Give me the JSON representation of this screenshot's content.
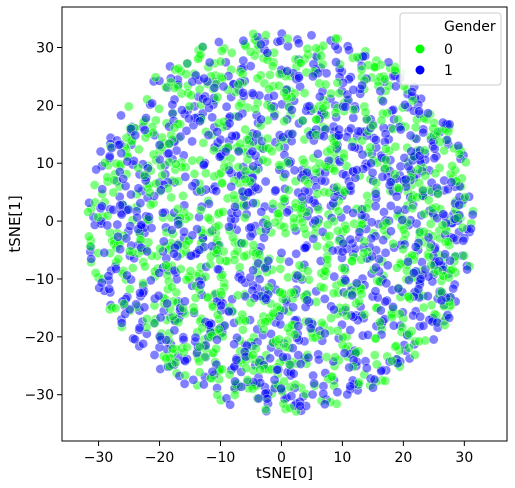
{
  "chart_data": {
    "type": "scatter",
    "title": "",
    "xlabel": "tSNE[0]",
    "ylabel": "tSNE[1]",
    "xlim": [
      -36,
      37
    ],
    "ylim": [
      -38,
      37
    ],
    "xticks": [
      -30,
      -20,
      -10,
      0,
      10,
      20,
      30
    ],
    "yticks": [
      -30,
      -20,
      -10,
      0,
      10,
      20,
      30
    ],
    "grid": false,
    "legend": {
      "title": "Gender",
      "placement": "top-right",
      "entries": [
        "0",
        "1"
      ]
    },
    "series": [
      {
        "name": "0",
        "color": "#00ff00",
        "opacity": 0.5,
        "count": 1100,
        "seed": 7
      },
      {
        "name": "1",
        "color": "#0000ff",
        "opacity": 0.5,
        "count": 1100,
        "seed": 13
      }
    ],
    "cloud_shape": {
      "center": [
        0,
        0
      ],
      "radius_x": 32,
      "radius_y": 33
    }
  }
}
